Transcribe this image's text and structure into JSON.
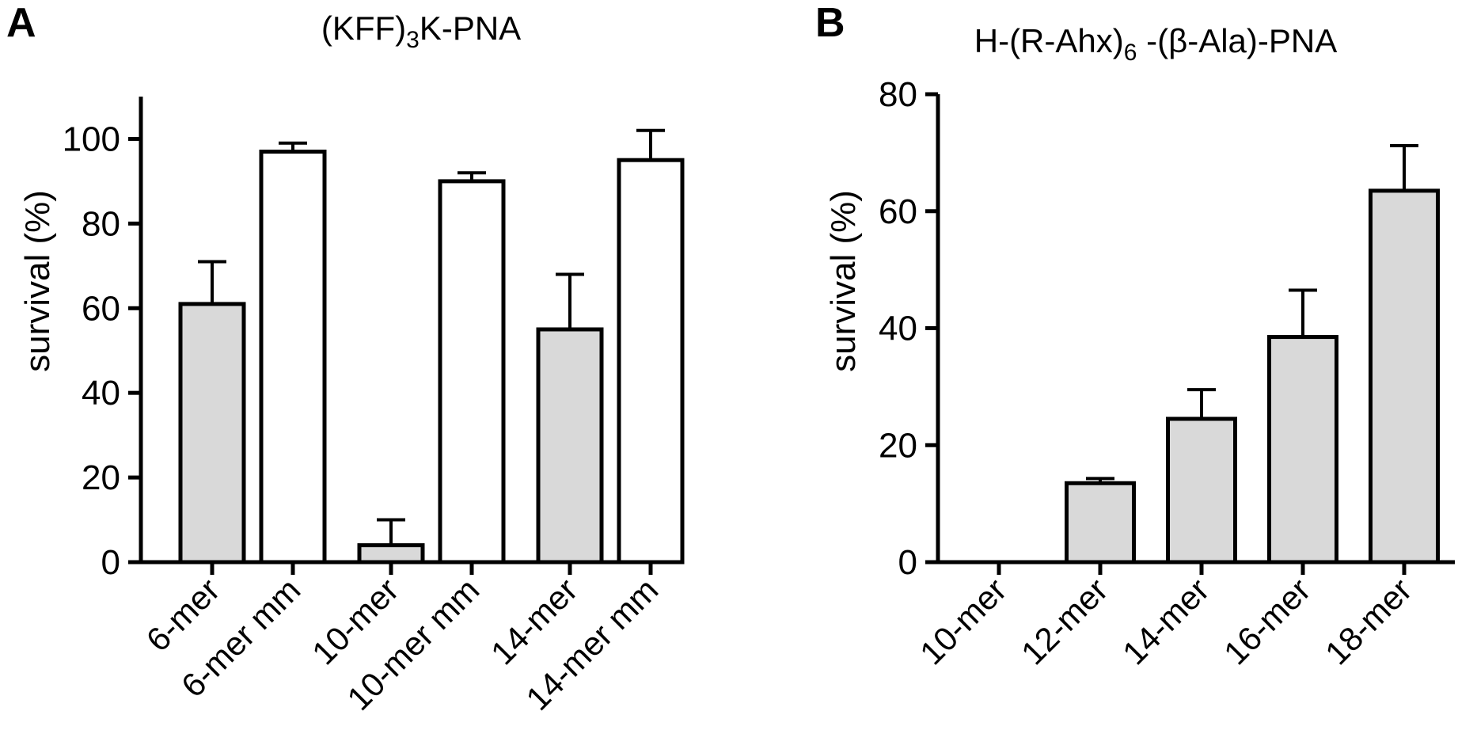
{
  "chart_data": [
    {
      "panel": "A",
      "type": "bar",
      "title": "(KFF)3K-PNA",
      "title_parts": {
        "pre": "(KFF)",
        "sub": "3",
        "post": "K-PNA"
      },
      "ylabel": "survival (%)",
      "ylim": [
        0,
        110
      ],
      "yticks": [
        0,
        20,
        40,
        60,
        80,
        100
      ],
      "categories": [
        "6-mer",
        "6-mer mm",
        "10-mer",
        "10-mer mm",
        "14-mer",
        "14-mer mm"
      ],
      "values": [
        61,
        97,
        4,
        90,
        55,
        95
      ],
      "errors": [
        10,
        2,
        6,
        2,
        13,
        7
      ],
      "fills": [
        "#d9d9d9",
        "#ffffff",
        "#d9d9d9",
        "#ffffff",
        "#d9d9d9",
        "#ffffff"
      ]
    },
    {
      "panel": "B",
      "type": "bar",
      "title": "H-(R-Ahx)6 -(β-Ala)-PNA",
      "title_parts": {
        "pre": "H-(R-Ahx)",
        "sub": "6",
        "post": " -(β-Ala)-PNA"
      },
      "ylabel": "survival (%)",
      "ylim": [
        0,
        80
      ],
      "yticks": [
        0,
        20,
        40,
        60,
        80
      ],
      "categories": [
        "10-mer",
        "12-mer",
        "14-mer",
        "16-mer",
        "18-mer"
      ],
      "values": [
        0,
        13.5,
        24.5,
        38.5,
        63.5
      ],
      "errors": [
        0,
        0.8,
        5,
        8,
        7.7
      ],
      "fills": [
        "#d9d9d9",
        "#d9d9d9",
        "#d9d9d9",
        "#d9d9d9",
        "#d9d9d9"
      ]
    }
  ]
}
